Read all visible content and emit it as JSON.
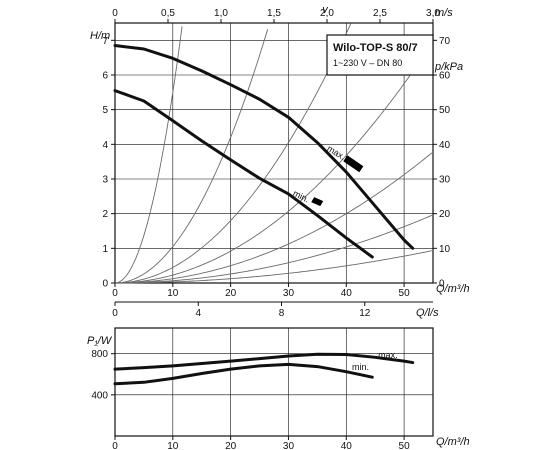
{
  "chart_data": [
    {
      "type": "line",
      "title": "Wilo-TOP-S 80/7",
      "subtitle": "1~230 V – DN 80",
      "x_primary": {
        "label": "Q/m³/h",
        "range": [
          0,
          55
        ],
        "ticks": [
          0,
          10,
          20,
          30,
          40,
          50
        ]
      },
      "x_secondary": {
        "label": "Q/l/s",
        "ticks": [
          0,
          4,
          8,
          12
        ]
      },
      "x_top": {
        "label": "v",
        "unit": "m/s",
        "ticks": [
          "0",
          "0,5",
          "1,0",
          "1,5",
          "2,0",
          "2,5",
          "3,0"
        ]
      },
      "y_primary": {
        "label": "H/m",
        "range": [
          0,
          7.5
        ],
        "ticks": [
          0,
          1,
          2,
          3,
          4,
          5,
          6,
          7
        ]
      },
      "y_secondary": {
        "label": "p/kPa",
        "ticks": [
          0,
          10,
          20,
          30,
          40,
          50,
          60,
          70
        ]
      },
      "series": [
        {
          "name": "max.",
          "x": [
            0,
            5,
            10,
            15,
            20,
            25,
            30,
            35,
            40,
            45,
            50,
            51.5
          ],
          "y": [
            6.85,
            6.75,
            6.48,
            6.12,
            5.72,
            5.3,
            4.78,
            4.05,
            3.2,
            2.22,
            1.24,
            1.0
          ],
          "curve_label": "max.",
          "marker": {
            "x": 40.7,
            "y": 3.6,
            "type": "selector"
          }
        },
        {
          "name": "min.",
          "x": [
            0,
            5,
            10,
            15,
            20,
            25,
            30,
            35,
            40,
            44.5
          ],
          "y": [
            5.55,
            5.25,
            4.68,
            4.1,
            3.55,
            3.02,
            2.57,
            1.95,
            1.3,
            0.75
          ],
          "curve_label": "min.",
          "marker": {
            "x": 34.8,
            "y": 2.42,
            "type": "selector"
          }
        }
      ],
      "system_curves": [
        {
          "k": 0.055
        },
        {
          "k": 0.0105
        },
        {
          "k": 0.0045
        },
        {
          "k": 0.0023
        },
        {
          "k": 0.00125
        },
        {
          "k": 0.00065
        },
        {
          "k": 0.00031
        }
      ],
      "grid": true
    },
    {
      "type": "line",
      "x_primary": {
        "label": "Q/m³/h",
        "range": [
          0,
          55
        ],
        "ticks": [
          0,
          10,
          20,
          30,
          40,
          50
        ]
      },
      "y_primary": {
        "label": "P₁/W",
        "range": [
          0,
          1050
        ],
        "ticks": [
          400,
          800
        ]
      },
      "series": [
        {
          "name": "max.",
          "x": [
            0,
            5,
            10,
            15,
            20,
            25,
            30,
            35,
            40,
            45,
            50,
            51.5
          ],
          "y": [
            650,
            665,
            682,
            705,
            728,
            752,
            778,
            795,
            792,
            765,
            728,
            714
          ],
          "curve_label": "max."
        },
        {
          "name": "min.",
          "x": [
            0,
            5,
            10,
            15,
            20,
            25,
            30,
            35,
            40,
            44.5
          ],
          "y": [
            508,
            522,
            560,
            608,
            650,
            682,
            696,
            675,
            625,
            572
          ],
          "curve_label": "min."
        }
      ],
      "grid": true
    }
  ]
}
